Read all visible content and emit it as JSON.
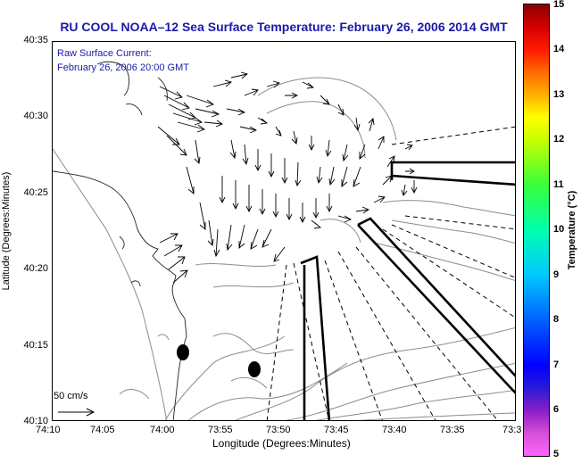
{
  "title": "RU COOL  NOAA–12  Sea Surface Temperature:  February 26, 2006 2014 GMT",
  "annotation": {
    "line1": "Raw Surface Current:",
    "line2": "February 26, 2006 20:00 GMT"
  },
  "axes": {
    "ylabel": "Latitude (Degrees:Minutes)",
    "xlabel": "Longitude (Degrees:Minutes)",
    "yticks": [
      "40:35",
      "40:30",
      "40:25",
      "40:20",
      "40:15",
      "40:10"
    ],
    "xticks": [
      "74:10",
      "74:05",
      "74:00",
      "73:55",
      "73:50",
      "73:45",
      "73:40",
      "73:35",
      "73:3"
    ]
  },
  "scale_vector": {
    "label": "50 cm/s"
  },
  "colorbar": {
    "label": "Temperature (°C)",
    "ticks": [
      "15",
      "14",
      "13",
      "12",
      "11",
      "10",
      "9",
      "8",
      "7",
      "6",
      "5"
    ],
    "min": 5,
    "max": 15
  },
  "colors": {
    "title_text": "#1a1aa8",
    "annotation_text": "#1a1aa8",
    "land": "#ffffff",
    "vectors": "#000000",
    "bathymetry": "#8c8c8c"
  },
  "icons": [
    "scale-arrow-icon",
    "buoy-marker-icon"
  ]
}
